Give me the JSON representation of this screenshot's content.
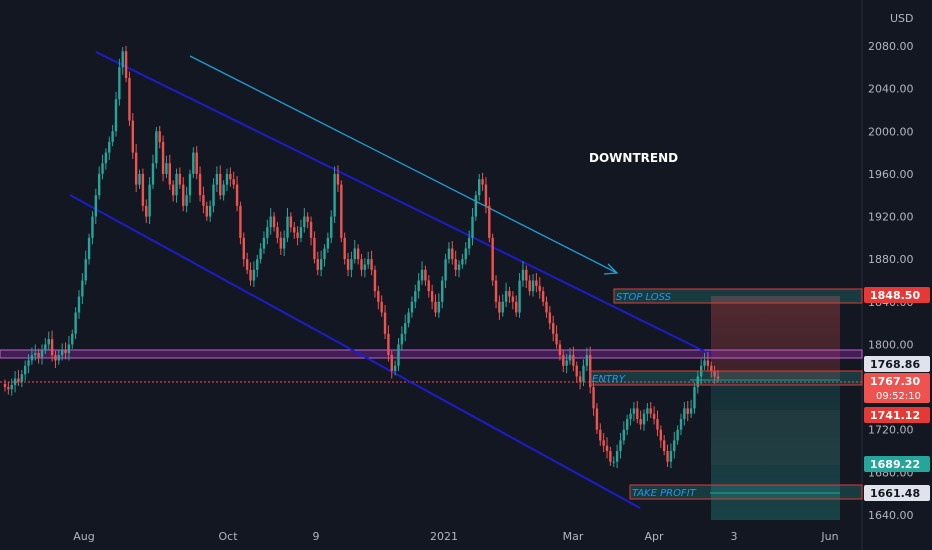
{
  "currency": "USD",
  "colors": {
    "background": "#131722",
    "up": "#26a69a",
    "down": "#ef5350",
    "channel": "#1c1cc9",
    "trendline": "#1e9fd6",
    "support_band": "#9c27b0",
    "stop_box": "#e53935",
    "profit_box": "#26a69a"
  },
  "chart_data": {
    "type": "candlestick",
    "title": "",
    "xlabel": "",
    "ylabel": "",
    "ylim": [
      1630,
      2120
    ],
    "x_ticks": [
      "Aug",
      "Oct",
      "9",
      "2021",
      "Mar",
      "Apr",
      "3",
      "Jun"
    ],
    "y_ticks": [
      "2080.00",
      "2040.00",
      "2000.00",
      "1960.00",
      "1920.00",
      "1880.00",
      "1840.00",
      "1800.00",
      "1760.00",
      "1720.00",
      "1680.00",
      "1640.00"
    ],
    "annotations": {
      "downtrend": "DOWNTREND",
      "stop_loss": "STOP LOSS",
      "entry": "ENTRY",
      "take_profit": "TAKE PROFIT"
    },
    "price_labels": [
      {
        "value": "1848.50",
        "style": "stop"
      },
      {
        "value": "1768.86",
        "style": "neutral"
      },
      {
        "value": "1767.30",
        "sub": "09:52:10",
        "style": "current"
      },
      {
        "value": "1741.12",
        "style": "stop"
      },
      {
        "value": "1689.22",
        "style": "profit"
      },
      {
        "value": "1661.48",
        "style": "neutral"
      }
    ],
    "levels": {
      "stop": 1848.5,
      "entry": 1767.3,
      "target": 1661.48,
      "band_top": 1778,
      "band_bottom": 1768
    },
    "close": [
      1760,
      1758,
      1762,
      1768,
      1765,
      1772,
      1780,
      1785,
      1790,
      1792,
      1788,
      1795,
      1800,
      1805,
      1790,
      1785,
      1790,
      1795,
      1792,
      1800,
      1810,
      1830,
      1845,
      1860,
      1880,
      1900,
      1920,
      1940,
      1960,
      1970,
      1980,
      1990,
      2000,
      2030,
      2060,
      2075,
      2050,
      2010,
      1980,
      1950,
      1960,
      1930,
      1920,
      1950,
      1970,
      2000,
      1990,
      1960,
      1970,
      1950,
      1940,
      1960,
      1950,
      1930,
      1940,
      1960,
      1980,
      1960,
      1940,
      1930,
      1920,
      1930,
      1950,
      1960,
      1940,
      1950,
      1960,
      1955,
      1950,
      1930,
      1900,
      1880,
      1870,
      1860,
      1870,
      1880,
      1890,
      1900,
      1910,
      1920,
      1910,
      1900,
      1890,
      1900,
      1920,
      1910,
      1905,
      1900,
      1910,
      1920,
      1915,
      1900,
      1880,
      1870,
      1880,
      1890,
      1900,
      1920,
      1960,
      1950,
      1900,
      1880,
      1870,
      1880,
      1890,
      1880,
      1870,
      1875,
      1880,
      1870,
      1850,
      1840,
      1830,
      1810,
      1790,
      1775,
      1780,
      1800,
      1810,
      1820,
      1830,
      1840,
      1850,
      1860,
      1870,
      1860,
      1850,
      1840,
      1830,
      1840,
      1860,
      1880,
      1890,
      1880,
      1870,
      1875,
      1880,
      1890,
      1900,
      1920,
      1940,
      1955,
      1950,
      1930,
      1900,
      1860,
      1840,
      1830,
      1840,
      1850,
      1845,
      1840,
      1830,
      1860,
      1870,
      1860,
      1850,
      1860,
      1855,
      1850,
      1840,
      1830,
      1820,
      1810,
      1800,
      1790,
      1780,
      1785,
      1790,
      1780,
      1770,
      1765,
      1780,
      1790,
      1760,
      1740,
      1720,
      1710,
      1705,
      1700,
      1690,
      1690,
      1700,
      1710,
      1720,
      1730,
      1735,
      1740,
      1730,
      1725,
      1735,
      1740,
      1735,
      1730,
      1720,
      1710,
      1700,
      1690,
      1700,
      1710,
      1720,
      1730,
      1740,
      1735,
      1740,
      1760,
      1770,
      1780,
      1785,
      1780,
      1775,
      1770,
      1768
    ]
  }
}
